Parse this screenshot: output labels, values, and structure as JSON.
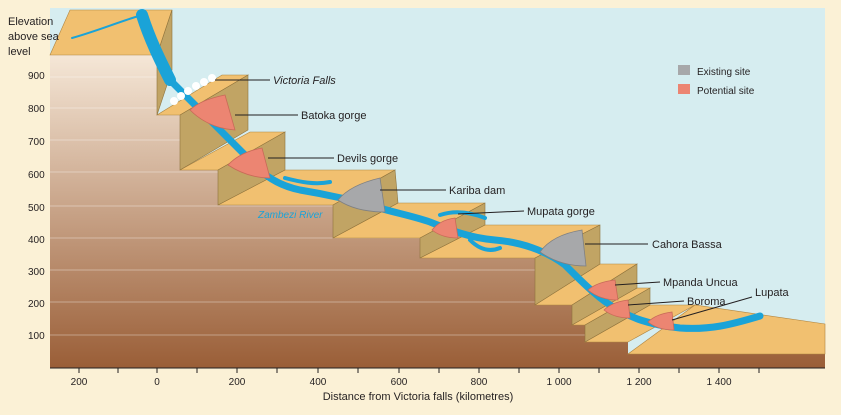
{
  "y_axis": {
    "title_lines": [
      "Elevation",
      "above sea",
      "level"
    ],
    "ticks": [
      "900",
      "800",
      "700",
      "600",
      "500",
      "400",
      "300",
      "200",
      "100"
    ]
  },
  "x_axis": {
    "title": "Distance from Victoria falls (kilometres)",
    "ticks": [
      "200",
      "0",
      "200",
      "400",
      "600",
      "800",
      "1 000",
      "1 200",
      "1 400"
    ]
  },
  "legend": {
    "existing": "Existing site",
    "potential": "Potential site"
  },
  "river_label": "Zambezi River",
  "sites": [
    {
      "name": "Victoria Falls",
      "type": "falls",
      "distance_km": 0
    },
    {
      "name": "Batoka gorge",
      "type": "potential",
      "distance_km": 50
    },
    {
      "name": "Devils gorge",
      "type": "potential",
      "distance_km": 200
    },
    {
      "name": "Kariba dam",
      "type": "existing",
      "distance_km": 480
    },
    {
      "name": "Mupata gorge",
      "type": "potential",
      "distance_km": 710
    },
    {
      "name": "Cahora Bassa",
      "type": "existing",
      "distance_km": 1000
    },
    {
      "name": "Mpanda Uncua",
      "type": "potential",
      "distance_km": 1090
    },
    {
      "name": "Boroma",
      "type": "potential",
      "distance_km": 1130
    },
    {
      "name": "Lupata",
      "type": "potential",
      "distance_km": 1230
    }
  ],
  "colors": {
    "sky": "#d6edf0",
    "background": "#fbf1d6",
    "water": "#1aa3d8",
    "land_top": "#f1c070",
    "cliff": "#c1a464",
    "existing": "#a7a8aa",
    "potential": "#ec8572"
  }
}
